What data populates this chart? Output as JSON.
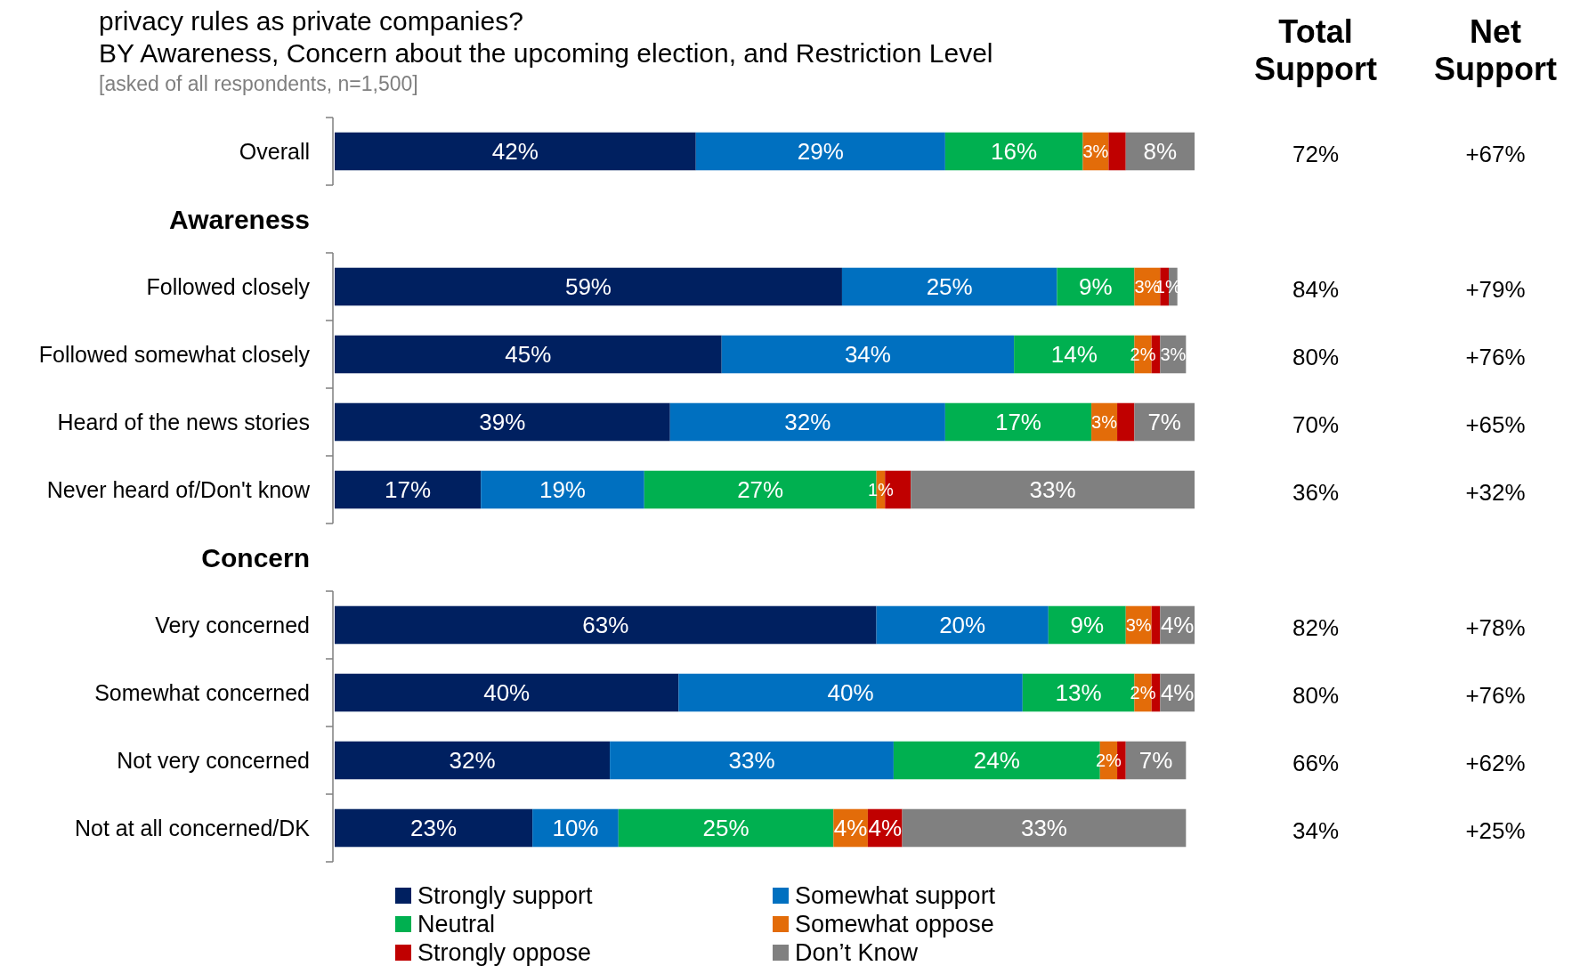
{
  "chart_data": {
    "type": "bar",
    "orientation": "horizontal",
    "stacked": true,
    "title": "privacy rules as private companies?",
    "subtitle": "BY Awareness, Concern about the upcoming election, and Restriction Level",
    "categories": [
      "Overall",
      "Awareness",
      "Followed closely",
      "Followed somewhat closely",
      "Heard of the news stories",
      "Never heard of/Don't know",
      "Concern",
      "Very concerned",
      "Somewhat concerned",
      "Not very concerned",
      "Not at all concerned/DK"
    ],
    "xlim": [
      0,
      100
    ],
    "tick_labels": "y",
    "legend": "bottom",
    "data_labels": false,
    "series": [
      {
        "name": "Strongly support",
        "color": "#002060",
        "values": [
          42,
          null,
          59,
          45,
          39,
          17,
          null,
          63,
          40,
          32,
          23
        ],
        "value_labels": [
          "42%",
          null,
          "59%",
          "45%",
          "39%",
          "17%",
          null,
          "63%",
          "40%",
          "32%",
          "23%"
        ]
      },
      {
        "name": "Somewhat support",
        "color": "#0070c0",
        "values": [
          29,
          null,
          25,
          34,
          32,
          19,
          null,
          20,
          40,
          33,
          10
        ],
        "value_labels": [
          "29%",
          null,
          "25%",
          "34%",
          "32%",
          "19%",
          null,
          "20%",
          "40%",
          "33%",
          "10%"
        ]
      },
      {
        "name": "Neutral",
        "color": "#00b050",
        "values": [
          16,
          null,
          9,
          14,
          17,
          27,
          null,
          9,
          13,
          24,
          25
        ],
        "value_labels": [
          "16%",
          null,
          "9%",
          "14%",
          "17%",
          "27%",
          null,
          "9%",
          "13%",
          "24%",
          "25%"
        ]
      },
      {
        "name": "Somewhat oppose",
        "color": "#e36c09",
        "values": [
          3,
          null,
          3,
          2,
          3,
          1,
          null,
          3,
          2,
          2,
          4
        ],
        "value_labels": [
          "3%",
          null,
          "3%",
          "2%",
          "3%",
          "1%",
          null,
          "3%",
          "2%",
          "2%",
          "4%"
        ]
      },
      {
        "name": "Strongly oppose",
        "color": "#c00000",
        "values": [
          2,
          null,
          1,
          1,
          2,
          3,
          null,
          1,
          1,
          1,
          4
        ],
        "value_labels": [
          null,
          null,
          "1%",
          null,
          null,
          null,
          null,
          null,
          null,
          null,
          "4%"
        ]
      },
      {
        "name": "Don’t Know",
        "color": "#808080",
        "values": [
          8,
          null,
          1,
          3,
          7,
          33,
          null,
          4,
          4,
          7,
          33
        ],
        "value_labels": [
          "8%",
          null,
          null,
          "3%",
          "7%",
          "33%",
          null,
          "4%",
          "4%",
          "7%",
          "33%"
        ]
      }
    ],
    "annotations": [
      "[asked of all respondents, n=1,500]",
      "Total Support",
      "Net Support",
      "72%",
      "+67%",
      "84%",
      "+79%",
      "80%",
      "+76%",
      "70%",
      "+65%",
      "36%",
      "+32%",
      "82%",
      "+78%",
      "80%",
      "+76%",
      "66%",
      "+62%",
      "34%",
      "+25%"
    ]
  }
}
